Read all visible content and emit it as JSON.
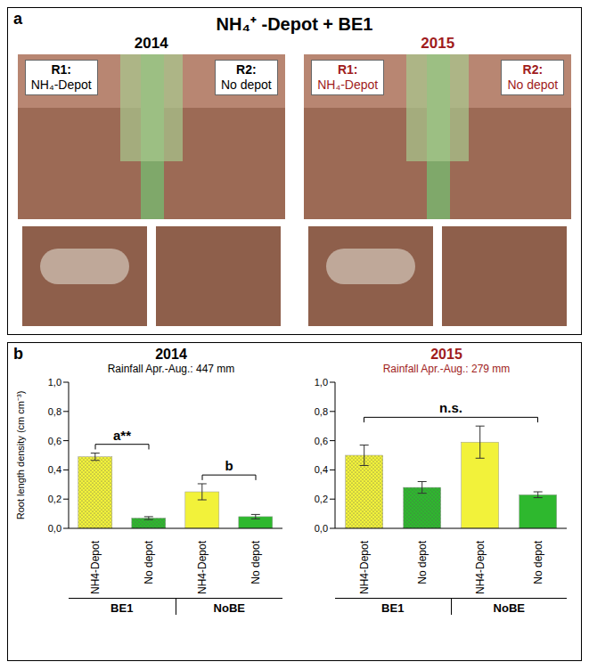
{
  "panel_a": {
    "label": "a",
    "title": "NH₄⁺ -Depot + BE1",
    "panels": [
      {
        "year": "2014",
        "rows": [
          {
            "id": "R1:",
            "label": "NH₄-Depot"
          },
          {
            "id": "R2:",
            "label": "No depot"
          }
        ]
      },
      {
        "year": "2015",
        "rows": [
          {
            "id": "R1:",
            "label": "NH₄-Depot"
          },
          {
            "id": "R2:",
            "label": "No depot"
          }
        ]
      }
    ]
  },
  "panel_b_label": "b",
  "chart_data": [
    {
      "type": "bar",
      "title": "2014",
      "subtitle": "Rainfall Apr.-Aug.: 447 mm",
      "y_label": "Root length density (cm cm⁻³)",
      "categories": [
        "NH4-Depot",
        "No depot",
        "NH4-Depot",
        "No depot"
      ],
      "groups": [
        "BE1",
        "NoBE"
      ],
      "values": [
        0.49,
        0.07,
        0.25,
        0.08
      ],
      "errors": [
        0.025,
        0.01,
        0.055,
        0.015
      ],
      "colors": [
        "#f2f23a",
        "#2eb82e",
        "#f2f23a",
        "#2eb82e"
      ],
      "ylim": [
        0,
        1
      ],
      "yticks": [
        {
          "value": 0,
          "label": "0,0"
        },
        {
          "value": 0.2,
          "label": "0,2"
        },
        {
          "value": 0.4,
          "label": "0,4"
        },
        {
          "value": 0.6,
          "label": "0,6"
        },
        {
          "value": 0.8,
          "label": "0,8"
        },
        {
          "value": 1,
          "label": "1,0"
        }
      ],
      "annotations": [
        {
          "text": "a**",
          "groups": [
            "BE1"
          ]
        },
        {
          "text": "b",
          "groups": [
            "NoBE"
          ]
        }
      ]
    },
    {
      "type": "bar",
      "title": "2015",
      "subtitle": "Rainfall Apr.-Aug.: 279 mm",
      "categories": [
        "NH4-Depot",
        "No depot",
        "NH4-Depot",
        "No depot"
      ],
      "groups": [
        "BE1",
        "NoBE"
      ],
      "values": [
        0.5,
        0.28,
        0.59,
        0.23
      ],
      "errors": [
        0.07,
        0.04,
        0.11,
        0.02
      ],
      "colors": [
        "#f2f23a",
        "#2eb82e",
        "#f2f23a",
        "#2eb82e"
      ],
      "ylim": [
        0,
        1
      ],
      "yticks": [
        {
          "value": 0,
          "label": "0,0"
        },
        {
          "value": 0.2,
          "label": "0,2"
        },
        {
          "value": 0.4,
          "label": "0,4"
        },
        {
          "value": 0.6,
          "label": "0,6"
        },
        {
          "value": 0.8,
          "label": "0,8"
        },
        {
          "value": 1,
          "label": "1,0"
        }
      ],
      "annotations": [
        {
          "text": "n.s.",
          "groups": [
            "BE1",
            "NoBE"
          ]
        }
      ]
    }
  ]
}
